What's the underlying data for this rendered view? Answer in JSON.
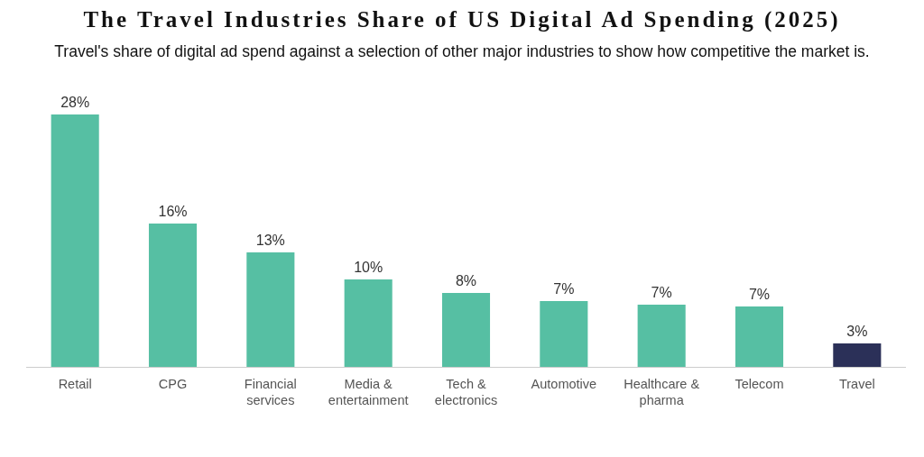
{
  "chart_data": {
    "type": "bar",
    "title": "The Travel Industries Share of US Digital Ad Spending (2025)",
    "subtitle": "Travel's share of digital ad spend against a selection of other major industries to show how competitive the market is.",
    "categories": [
      "Retail",
      "CPG",
      "Financial services",
      "Media & entertainment",
      "Tech & electronics",
      "Automotive",
      "Healthcare & pharma",
      "Telecom",
      "Travel"
    ],
    "values": [
      28,
      15.9,
      12.7,
      9.7,
      8.2,
      7.3,
      6.9,
      6.7,
      2.6
    ],
    "value_labels": [
      "28%",
      "16%",
      "13%",
      "10%",
      "8%",
      "7%",
      "7%",
      "7%",
      "3%"
    ],
    "colors": [
      "#56bfa3",
      "#56bfa3",
      "#56bfa3",
      "#56bfa3",
      "#56bfa3",
      "#56bfa3",
      "#56bfa3",
      "#56bfa3",
      "#2b3058"
    ]
  }
}
